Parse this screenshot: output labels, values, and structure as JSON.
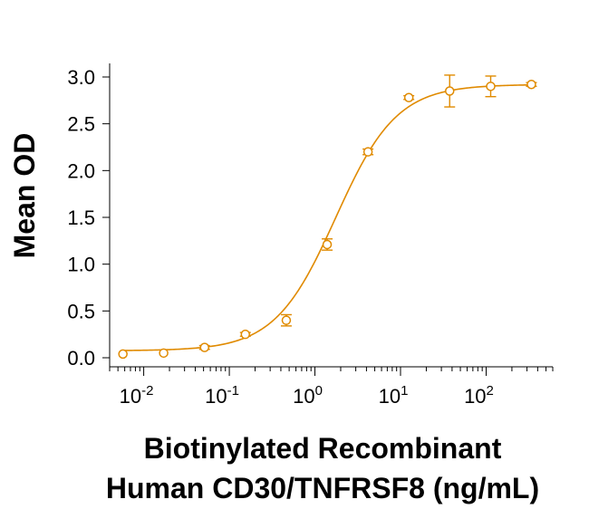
{
  "chart_data": {
    "type": "scatter",
    "title": "",
    "xlabel_lines": [
      "Biotinylated Recombinant",
      "Human CD30/TNFRSF8 (ng/mL)"
    ],
    "ylabel": "Mean OD",
    "x_scale": "log10",
    "xlim": [
      0.004,
      600
    ],
    "ylim": [
      0,
      3.1
    ],
    "x_ticks": [
      {
        "value": 0.01,
        "base": "10",
        "exp": "-2"
      },
      {
        "value": 0.1,
        "base": "10",
        "exp": "-1"
      },
      {
        "value": 1,
        "base": "10",
        "exp": "0"
      },
      {
        "value": 10,
        "base": "10",
        "exp": "1"
      },
      {
        "value": 100,
        "base": "10",
        "exp": "2"
      }
    ],
    "y_ticks": [
      {
        "value": 0.0,
        "label": "0.0"
      },
      {
        "value": 0.5,
        "label": "0.5"
      },
      {
        "value": 1.0,
        "label": "1.0"
      },
      {
        "value": 1.5,
        "label": "1.5"
      },
      {
        "value": 2.0,
        "label": "2.0"
      },
      {
        "value": 2.5,
        "label": "2.5"
      },
      {
        "value": 3.0,
        "label": "3.0"
      }
    ],
    "series": [
      {
        "color": "#e08a00",
        "x": [
          0.00572,
          0.0171,
          0.0514,
          0.154,
          0.463,
          1.39,
          4.17,
          12.5,
          37.5,
          113,
          338
        ],
        "y": [
          0.04,
          0.05,
          0.11,
          0.25,
          0.4,
          1.21,
          2.2,
          2.78,
          2.85,
          2.9,
          2.92
        ],
        "error": [
          0,
          0,
          0.02,
          0.02,
          0.06,
          0.06,
          0.03,
          0.02,
          0.17,
          0.11,
          0.02
        ]
      }
    ],
    "fit": {
      "model": "4PL",
      "bottom": 0.075,
      "top": 2.92,
      "ec50": 1.75,
      "hill": 1.22
    },
    "grid": false,
    "legend": "none"
  }
}
